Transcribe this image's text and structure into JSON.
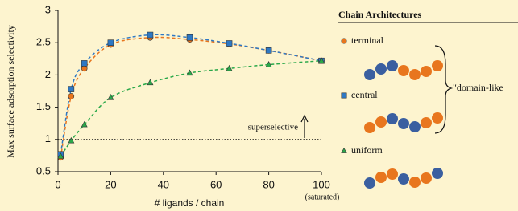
{
  "chart_data": {
    "type": "line",
    "y_label": "Max surface adsorption selectivity",
    "x_label": "# ligands / chain",
    "x_end_note": "(saturated)",
    "x": [
      1,
      5,
      10,
      20,
      35,
      50,
      65,
      80,
      100
    ],
    "series": [
      {
        "name": "terminal",
        "color": "#e8761e",
        "marker": "circle",
        "values": [
          0.72,
          1.67,
          2.1,
          2.47,
          2.58,
          2.55,
          2.48,
          2.38,
          2.22
        ]
      },
      {
        "name": "central",
        "color": "#2e78c4",
        "marker": "square",
        "values": [
          0.77,
          1.78,
          2.18,
          2.5,
          2.62,
          2.58,
          2.49,
          2.38,
          2.22
        ]
      },
      {
        "name": "uniform",
        "color": "#2aa84a",
        "marker": "triangle",
        "values": [
          0.74,
          0.98,
          1.23,
          1.65,
          1.88,
          2.03,
          2.1,
          2.16,
          2.22
        ]
      }
    ],
    "xlim": [
      0,
      100
    ],
    "xticks": [
      0,
      20,
      40,
      60,
      80,
      100
    ],
    "ylim": [
      0.5,
      3
    ],
    "yticks": [
      0.5,
      1,
      1.5,
      2,
      2.5,
      3
    ],
    "threshold": 1,
    "threshold_label": "superselective",
    "legend_title": "Chain Architectures",
    "group_label": "\"domain-like"
  }
}
